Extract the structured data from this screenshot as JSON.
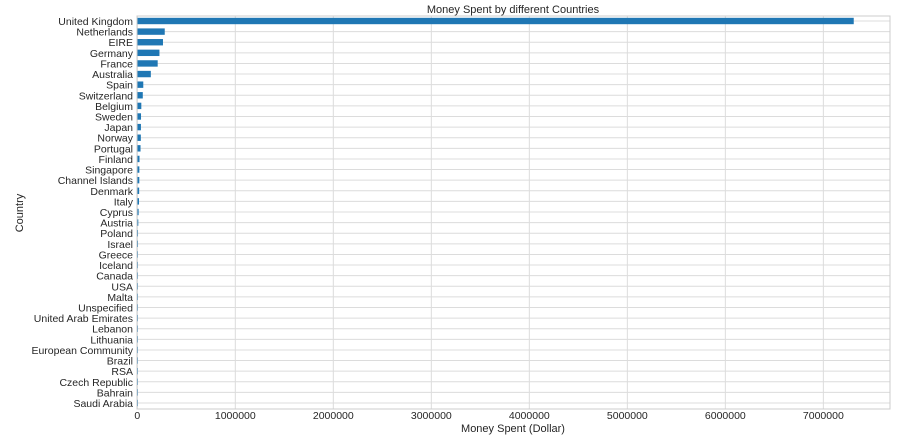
{
  "chart_data": {
    "type": "bar",
    "orientation": "horizontal",
    "title": "Money Spent by different Countries",
    "xlabel": "Money Spent (Dollar)",
    "ylabel": "Country",
    "xlim": [
      0,
      7680000
    ],
    "xticks": [
      0,
      1000000,
      2000000,
      3000000,
      4000000,
      5000000,
      6000000,
      7000000
    ],
    "xtick_labels": [
      "0",
      "1000000",
      "2000000",
      "3000000",
      "4000000",
      "5000000",
      "6000000",
      "7000000"
    ],
    "grid": true,
    "bar_color": "#1f77b4",
    "categories": [
      "United Kingdom",
      "Netherlands",
      "EIRE",
      "Germany",
      "France",
      "Australia",
      "Spain",
      "Switzerland",
      "Belgium",
      "Sweden",
      "Japan",
      "Norway",
      "Portugal",
      "Finland",
      "Singapore",
      "Channel Islands",
      "Denmark",
      "Italy",
      "Cyprus",
      "Austria",
      "Poland",
      "Israel",
      "Greece",
      "Iceland",
      "Canada",
      "USA",
      "Malta",
      "Unspecified",
      "United Arab Emirates",
      "Lebanon",
      "Lithuania",
      "European Community",
      "Brazil",
      "RSA",
      "Czech Republic",
      "Bahrain",
      "Saudi Arabia"
    ],
    "values": [
      7310000,
      280000,
      262000,
      226000,
      208000,
      138000,
      61000,
      56000,
      41000,
      38000,
      37000,
      36000,
      33000,
      22500,
      21000,
      20400,
      19000,
      17500,
      13500,
      10200,
      7300,
      7200,
      4800,
      4300,
      3700,
      3600,
      2700,
      2700,
      1900,
      1700,
      1700,
      1300,
      1100,
      1000,
      800,
      550,
      150
    ]
  }
}
